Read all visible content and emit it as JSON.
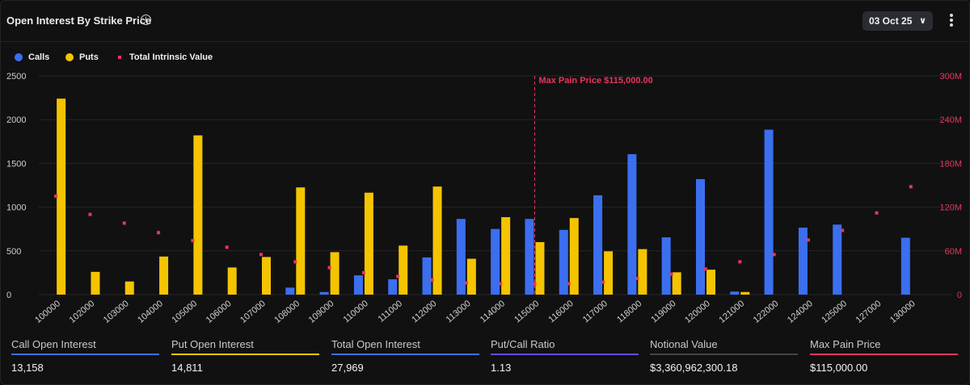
{
  "header": {
    "title": "Open Interest By Strike Price",
    "date_selector": "03 Oct 25"
  },
  "colors": {
    "calls": "#3b6ff0",
    "puts": "#f5c400",
    "intrinsic": "#e8365c",
    "ratio_line": "#6a48e8",
    "notional_line": "#444444",
    "max_pain_line": "#e8365c"
  },
  "chart_data": {
    "type": "bar",
    "title": "Open Interest By Strike Price",
    "categories": [
      "100000",
      "102000",
      "103000",
      "104000",
      "105000",
      "106000",
      "107000",
      "108000",
      "109000",
      "110000",
      "111000",
      "112000",
      "113000",
      "114000",
      "115000",
      "116000",
      "117000",
      "118000",
      "119000",
      "120000",
      "121000",
      "122000",
      "124000",
      "125000",
      "127000",
      "130000"
    ],
    "series": [
      {
        "name": "Calls",
        "axis": "left",
        "values": [
          0,
          0,
          0,
          0,
          0,
          0,
          0,
          80,
          30,
          220,
          175,
          425,
          865,
          750,
          865,
          740,
          1135,
          1605,
          655,
          1320,
          35,
          1885,
          765,
          800,
          0,
          650
        ]
      },
      {
        "name": "Puts",
        "axis": "left",
        "values": [
          2240,
          260,
          150,
          435,
          1820,
          310,
          430,
          1225,
          485,
          1165,
          560,
          1235,
          410,
          885,
          600,
          875,
          495,
          520,
          255,
          285,
          30,
          0,
          0,
          0,
          0,
          0
        ]
      },
      {
        "name": "Total Intrinsic Value",
        "axis": "right",
        "type": "scatter",
        "values": [
          135,
          110,
          98,
          85,
          74,
          65,
          55,
          45,
          37,
          30,
          25,
          20,
          16,
          15,
          15,
          15,
          17,
          22,
          28,
          35,
          45,
          55,
          75,
          88,
          112,
          148
        ]
      }
    ],
    "y_left": {
      "min": 0,
      "max": 2500,
      "ticks": [
        "0",
        "500",
        "1000",
        "1500",
        "2000",
        "2500"
      ]
    },
    "y_right": {
      "min": 0,
      "max": 300,
      "ticks": [
        "0",
        "60M",
        "120M",
        "180M",
        "240M",
        "300M"
      ]
    },
    "grid": true,
    "legend": [
      "Calls",
      "Puts",
      "Total Intrinsic Value"
    ],
    "legend_position": "top-left",
    "annotation": {
      "label": "Max Pain Price $115,000.00",
      "category": "115000"
    }
  },
  "stats": [
    {
      "label": "Call Open Interest",
      "value": "13,158",
      "color": "#3b6ff0"
    },
    {
      "label": "Put Open Interest",
      "value": "14,811",
      "color": "#f5c400"
    },
    {
      "label": "Total Open Interest",
      "value": "27,969",
      "color": "#3b6ff0"
    },
    {
      "label": "Put/Call Ratio",
      "value": "1.13",
      "color": "#6a48e8"
    },
    {
      "label": "Notional Value",
      "value": "$3,360,962,300.18",
      "color": "#444444"
    },
    {
      "label": "Max Pain Price",
      "value": "$115,000.00",
      "color": "#e8365c"
    }
  ]
}
